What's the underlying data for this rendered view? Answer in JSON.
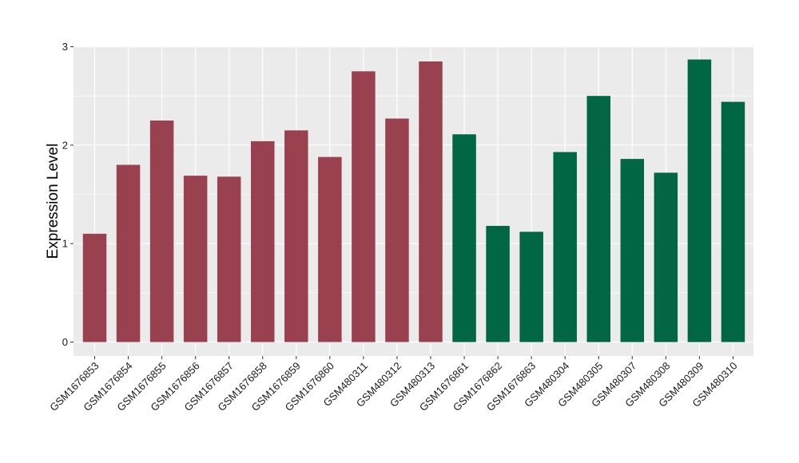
{
  "chart_data": {
    "type": "bar",
    "ylabel": "Expression Level",
    "xlabel": "",
    "ylim": [
      0,
      3.05
    ],
    "yticks": [
      0,
      1,
      2,
      3
    ],
    "grid": true,
    "colors": {
      "group_a": "#9a4150",
      "group_b": "#006644",
      "panel": "#ebebeb",
      "grid": "#ffffff"
    },
    "categories": [
      "GSM1676853",
      "GSM1676854",
      "GSM1676855",
      "GSM1676856",
      "GSM1676857",
      "GSM1676858",
      "GSM1676859",
      "GSM1676860",
      "GSM480311",
      "GSM480312",
      "GSM480313",
      "GSM1676861",
      "GSM1676862",
      "GSM1676863",
      "GSM480304",
      "GSM480305",
      "GSM480307",
      "GSM480308",
      "GSM480309",
      "GSM480310"
    ],
    "values": [
      1.1,
      1.8,
      2.25,
      1.69,
      1.68,
      2.04,
      2.15,
      1.88,
      2.75,
      2.27,
      2.85,
      2.11,
      1.18,
      1.12,
      1.93,
      2.5,
      1.86,
      1.72,
      2.87,
      2.44
    ],
    "groups": [
      "a",
      "a",
      "a",
      "a",
      "a",
      "a",
      "a",
      "a",
      "a",
      "a",
      "a",
      "b",
      "b",
      "b",
      "b",
      "b",
      "b",
      "b",
      "b",
      "b"
    ]
  }
}
